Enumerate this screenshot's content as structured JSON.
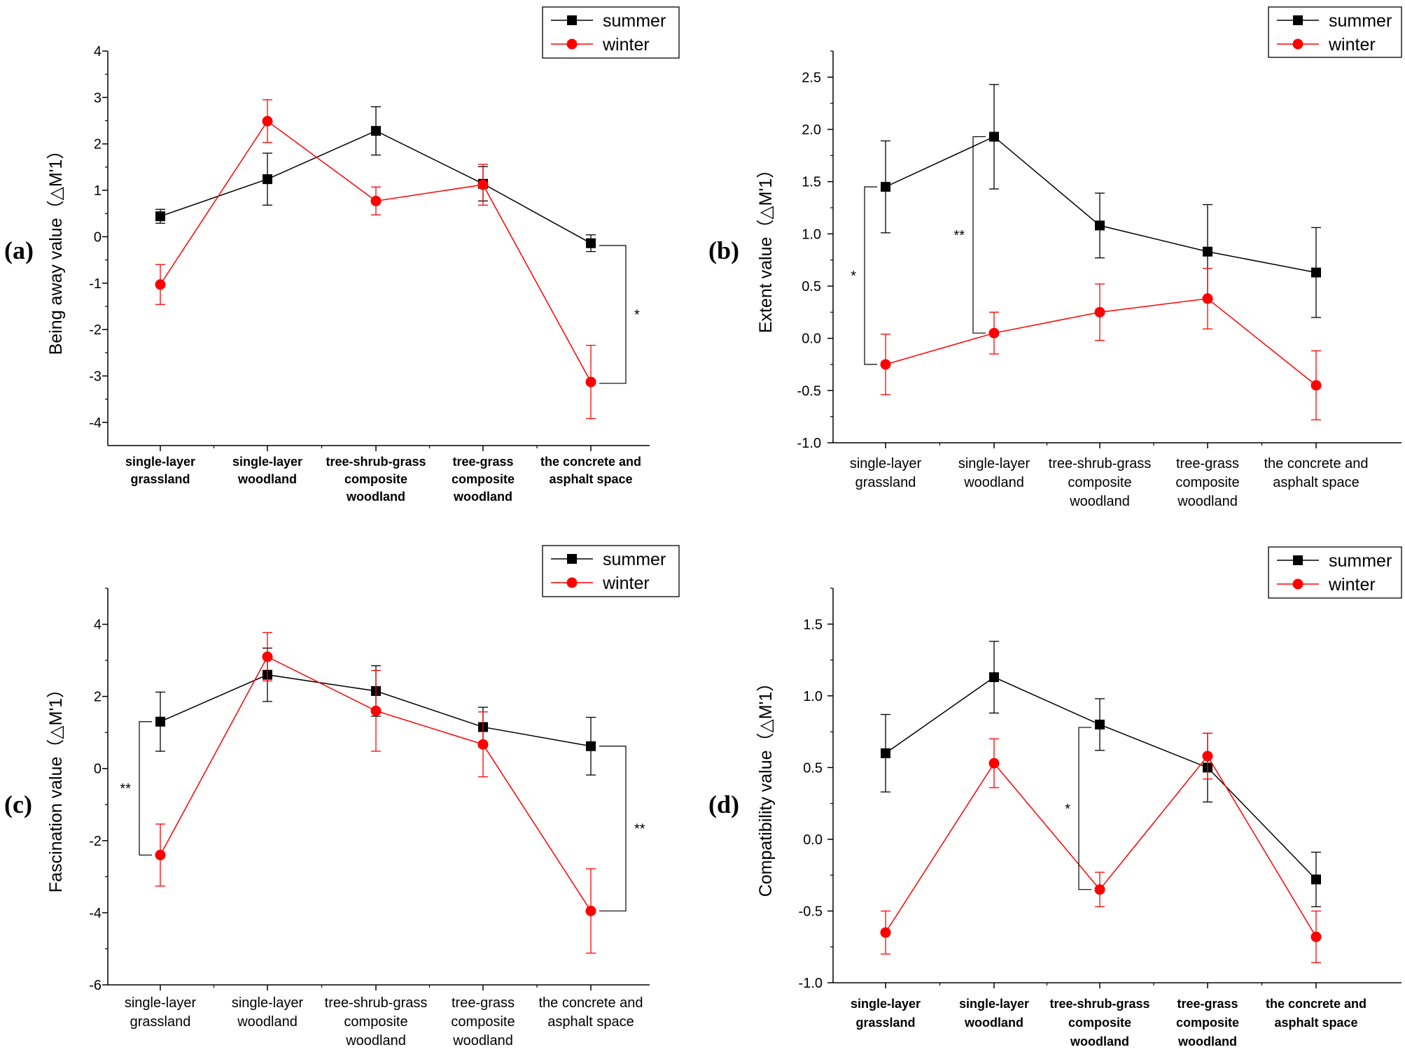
{
  "chart_data": [
    {
      "type": "line",
      "panel": "(a)",
      "ylabel": "Being away value（△M'1）",
      "ylim": [
        -4.5,
        4
      ],
      "yticks": [
        -4,
        -3,
        -2,
        -1,
        0,
        1,
        2,
        3,
        4
      ],
      "categories": [
        [
          "single-layer",
          "grassland"
        ],
        [
          "single-layer",
          "woodland"
        ],
        [
          "tree-shrub-grass",
          "composite",
          "woodland"
        ],
        [
          "tree-grass",
          "composite",
          "woodland"
        ],
        [
          "the concrete and",
          "asphalt space"
        ]
      ],
      "category_style": "bold",
      "legend": "top-right",
      "series": [
        {
          "name": "summer",
          "color": "#000000",
          "marker": "square",
          "values": [
            0.44,
            1.24,
            2.28,
            1.14,
            -0.14
          ],
          "errors": [
            0.15,
            0.56,
            0.52,
            0.37,
            0.18
          ]
        },
        {
          "name": "winter",
          "color": "#ff0000",
          "marker": "circle",
          "values": [
            -1.03,
            2.49,
            0.77,
            1.12,
            -3.13
          ],
          "errors": [
            0.43,
            0.46,
            0.3,
            0.44,
            0.79
          ]
        }
      ],
      "significance": [
        {
          "category": 4,
          "side": "right",
          "from": -0.19,
          "to": -3.16,
          "label": "*"
        }
      ]
    },
    {
      "type": "line",
      "panel": "(b)",
      "ylabel": "Extent value（△M'1）",
      "ylim": [
        -1.0,
        2.75
      ],
      "yticks": [
        -1.0,
        -0.5,
        0.0,
        0.5,
        1.0,
        1.5,
        2.0,
        2.5
      ],
      "categories": [
        [
          "single-layer",
          "grassland"
        ],
        [
          "single-layer",
          "woodland"
        ],
        [
          "tree-shrub-grass",
          "composite",
          "woodland"
        ],
        [
          "tree-grass",
          "composite",
          "woodland"
        ],
        [
          "the concrete and",
          "asphalt space"
        ]
      ],
      "category_style": "normal",
      "legend": "top-right",
      "series": [
        {
          "name": "summer",
          "color": "#000000",
          "marker": "square",
          "values": [
            1.45,
            1.93,
            1.08,
            0.83,
            0.63
          ],
          "errors": [
            0.44,
            0.5,
            0.31,
            0.45,
            0.43
          ]
        },
        {
          "name": "winter",
          "color": "#ff0000",
          "marker": "circle",
          "values": [
            -0.25,
            0.05,
            0.25,
            0.38,
            -0.45
          ],
          "errors": [
            0.29,
            0.2,
            0.27,
            0.29,
            0.33
          ]
        }
      ],
      "significance": [
        {
          "category": 0,
          "side": "left",
          "from": 1.45,
          "to": -0.25,
          "label": "*"
        },
        {
          "category": 1,
          "side": "left",
          "from": 1.93,
          "to": 0.05,
          "label": "**"
        }
      ]
    },
    {
      "type": "line",
      "panel": "(c)",
      "ylabel": "Fascination value（△M'1）",
      "ylim": [
        -6,
        5
      ],
      "yticks": [
        -6,
        -4,
        -2,
        0,
        2,
        4
      ],
      "categories": [
        [
          "single-layer",
          "grassland"
        ],
        [
          "single-layer",
          "woodland"
        ],
        [
          "tree-shrub-grass",
          "composite",
          "woodland"
        ],
        [
          "tree-grass",
          "composite",
          "woodland"
        ],
        [
          "the concrete and",
          "asphalt space"
        ]
      ],
      "category_style": "normal",
      "legend": "top-right",
      "series": [
        {
          "name": "summer",
          "color": "#000000",
          "marker": "square",
          "values": [
            1.3,
            2.6,
            2.15,
            1.15,
            0.62
          ],
          "errors": [
            0.82,
            0.74,
            0.7,
            0.55,
            0.8
          ]
        },
        {
          "name": "winter",
          "color": "#ff0000",
          "marker": "circle",
          "values": [
            -2.4,
            3.1,
            1.6,
            0.67,
            -3.95
          ],
          "errors": [
            0.86,
            0.67,
            1.12,
            0.9,
            1.17
          ]
        }
      ],
      "significance": [
        {
          "category": 0,
          "side": "left",
          "from": 1.3,
          "to": -2.4,
          "label": "**"
        },
        {
          "category": 4,
          "side": "right",
          "from": 0.62,
          "to": -3.95,
          "label": "**"
        }
      ]
    },
    {
      "type": "line",
      "panel": "(d)",
      "ylabel": "Compatibility value（△M'1）",
      "ylim": [
        -1.0,
        1.75
      ],
      "yticks": [
        -1.0,
        -0.5,
        0.0,
        0.5,
        1.0,
        1.5
      ],
      "categories": [
        [
          "single-layer",
          "grassland"
        ],
        [
          "single-layer",
          "woodland"
        ],
        [
          "tree-shrub-grass",
          "composite",
          "woodland"
        ],
        [
          "tree-grass",
          "composite",
          "woodland"
        ],
        [
          "the concrete and",
          "asphalt space"
        ]
      ],
      "category_style": "bold",
      "legend": "top-right",
      "series": [
        {
          "name": "summer",
          "color": "#000000",
          "marker": "square",
          "values": [
            0.6,
            1.13,
            0.8,
            0.5,
            -0.28
          ],
          "errors": [
            0.27,
            0.25,
            0.18,
            0.24,
            0.19
          ]
        },
        {
          "name": "winter",
          "color": "#ff0000",
          "marker": "circle",
          "values": [
            -0.65,
            0.53,
            -0.35,
            0.58,
            -0.68
          ],
          "errors": [
            0.15,
            0.17,
            0.12,
            0.16,
            0.18
          ]
        }
      ],
      "significance": [
        {
          "category": 2,
          "side": "left",
          "from": 0.78,
          "to": -0.35,
          "label": "*"
        }
      ]
    }
  ]
}
